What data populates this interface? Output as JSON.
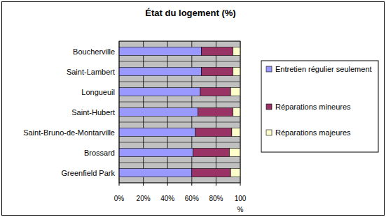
{
  "chart_data": {
    "type": "bar",
    "orientation": "horizontal",
    "stacked": true,
    "title": "État du logement (%)",
    "x_label": "%",
    "categories": [
      "Boucherville",
      "Saint-Lambert",
      "Longueuil",
      "Saint-Hubert",
      "Saint-Bruno-de-Montarville",
      "Brossard",
      "Greenfield Park"
    ],
    "series": [
      {
        "name": "Entretien régulier seulement",
        "color": "#9999ff",
        "values": [
          68,
          68,
          67,
          65,
          63,
          61,
          60
        ]
      },
      {
        "name": "Réparations mineures",
        "color": "#993366",
        "values": [
          26,
          26,
          25,
          29,
          30,
          30,
          32
        ]
      },
      {
        "name": "Réparations majeures",
        "color": "#ffffcc",
        "values": [
          6,
          6,
          8,
          6,
          7,
          9,
          8
        ]
      }
    ],
    "xlim": [
      0,
      100
    ],
    "xticks": [
      {
        "value": 0,
        "label": "0%"
      },
      {
        "value": 20,
        "label": "20%"
      },
      {
        "value": 40,
        "label": "40%"
      },
      {
        "value": 60,
        "label": "60%"
      },
      {
        "value": 80,
        "label": "80%"
      },
      {
        "value": 100,
        "label": "100"
      }
    ],
    "grid": true,
    "legend": "right"
  }
}
